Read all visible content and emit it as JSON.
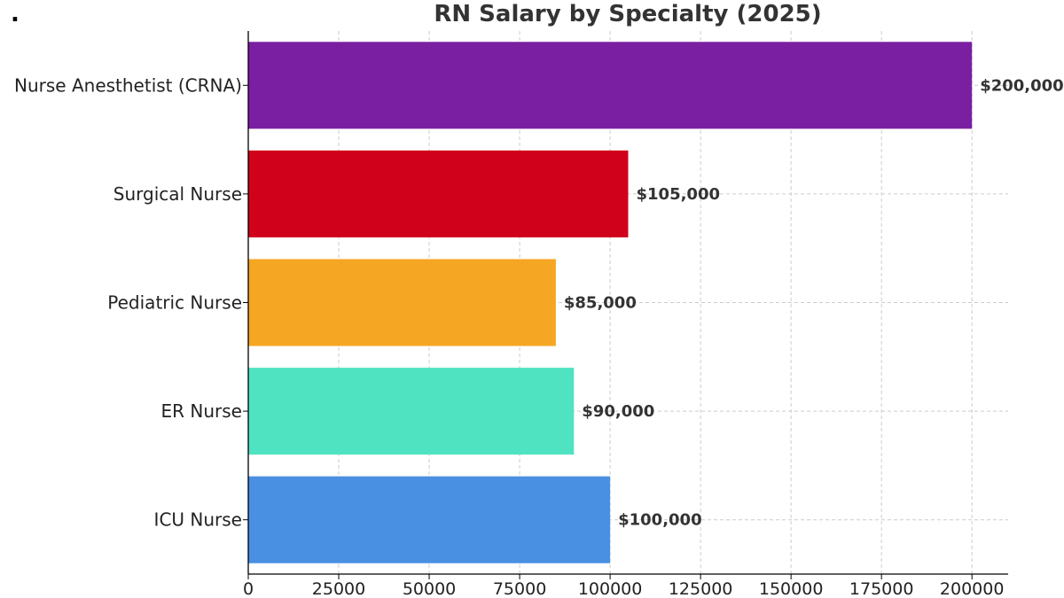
{
  "chart_data": {
    "type": "bar",
    "orientation": "horizontal",
    "title": "RN Salary by Specialty (2025)",
    "corner_mark": ".",
    "categories": [
      "Nurse Anesthetist (CRNA)",
      "Surgical Nurse",
      "Pediatric Nurse",
      "ER Nurse",
      "ICU Nurse"
    ],
    "values": [
      200000,
      105000,
      85000,
      90000,
      100000
    ],
    "value_labels": [
      "$200,000",
      "$105,000",
      "$85,000",
      "$90,000",
      "$100,000"
    ],
    "colors": [
      "#7b1fa2",
      "#d0021b",
      "#f5a623",
      "#50e3c2",
      "#4a90e2"
    ],
    "xlim": [
      0,
      210000
    ],
    "xticks": [
      0,
      25000,
      50000,
      75000,
      100000,
      125000,
      150000,
      175000,
      200000
    ],
    "xtick_labels": [
      "0",
      "25000",
      "50000",
      "75000",
      "100000",
      "125000",
      "150000",
      "175000",
      "200000"
    ],
    "grid": true
  }
}
